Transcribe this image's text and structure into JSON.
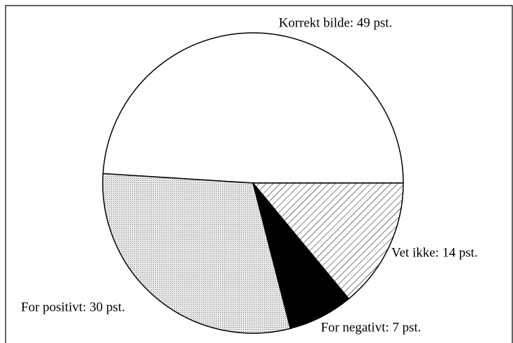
{
  "chart_data": {
    "type": "pie",
    "categories": [
      "Korrekt bilde",
      "For positivt",
      "For negativt",
      "Vet ikke"
    ],
    "values": [
      49,
      30,
      7,
      14
    ],
    "value_labels": [
      "Korrekt bilde: 49 pst.",
      "For positivt: 30 pst.",
      "For negativt: 7 pst.",
      "Vet ikke: 14 pst."
    ],
    "colors": [
      "#ffffff",
      "#d4d4d4",
      "#000000",
      "#ffffff"
    ],
    "patterns": [
      "none",
      "dots",
      "none",
      "hatch"
    ]
  }
}
